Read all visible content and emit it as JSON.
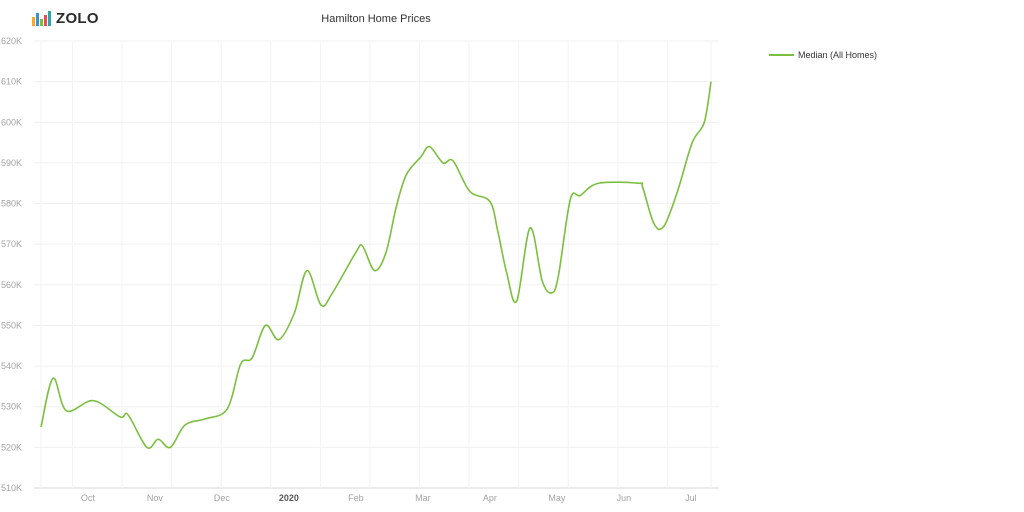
{
  "brand": {
    "name": "ZOLO",
    "colors": [
      "#f4a92c",
      "#3a8fd8",
      "#7ac143",
      "#e94f4f",
      "#2ea4a8"
    ]
  },
  "chart_data": {
    "type": "line",
    "title": "Hamilton Home Prices",
    "xlabel": "",
    "ylabel": "",
    "x_ticks": [
      {
        "label": "Oct",
        "pos": 0.7,
        "bold": false
      },
      {
        "label": "Nov",
        "pos": 1.7,
        "bold": false
      },
      {
        "label": "Dec",
        "pos": 2.7,
        "bold": false
      },
      {
        "label": "2020",
        "pos": 3.7,
        "bold": true
      },
      {
        "label": "Feb",
        "pos": 4.7,
        "bold": false
      },
      {
        "label": "Mar",
        "pos": 5.7,
        "bold": false
      },
      {
        "label": "Apr",
        "pos": 6.7,
        "bold": false
      },
      {
        "label": "May",
        "pos": 7.7,
        "bold": false
      },
      {
        "label": "Jun",
        "pos": 8.7,
        "bold": false
      },
      {
        "label": "Jul",
        "pos": 9.7,
        "bold": false
      }
    ],
    "xlim": [
      0,
      10
    ],
    "grid_x": [
      0.0,
      0.47,
      1.21,
      1.95,
      2.69,
      3.43,
      4.17,
      4.91,
      5.65,
      6.39,
      7.13,
      7.87,
      8.61,
      9.35,
      10.0
    ],
    "ylim": [
      510000,
      620000
    ],
    "y_ticks": [
      {
        "value": 510000,
        "label": "510K"
      },
      {
        "value": 520000,
        "label": "520K"
      },
      {
        "value": 530000,
        "label": "530K"
      },
      {
        "value": 540000,
        "label": "540K"
      },
      {
        "value": 550000,
        "label": "550K"
      },
      {
        "value": 560000,
        "label": "560K"
      },
      {
        "value": 570000,
        "label": "570K"
      },
      {
        "value": 580000,
        "label": "580K"
      },
      {
        "value": 590000,
        "label": "590K"
      },
      {
        "value": 600000,
        "label": "600K"
      },
      {
        "value": 610000,
        "label": "610K"
      },
      {
        "value": 620000,
        "label": "620K"
      }
    ],
    "grid": true,
    "legend_position": "top-right",
    "series": [
      {
        "name": "Median (All Homes)",
        "color": "#7cbf3f",
        "points": [
          [
            0.0,
            525000
          ],
          [
            0.18,
            537000
          ],
          [
            0.38,
            529000
          ],
          [
            0.78,
            531500
          ],
          [
            1.18,
            527500
          ],
          [
            1.3,
            528000
          ],
          [
            1.58,
            520000
          ],
          [
            1.75,
            522000
          ],
          [
            1.93,
            520000
          ],
          [
            2.15,
            525500
          ],
          [
            2.45,
            527000
          ],
          [
            2.78,
            529500
          ],
          [
            2.98,
            540500
          ],
          [
            3.15,
            542000
          ],
          [
            3.35,
            550000
          ],
          [
            3.55,
            546500
          ],
          [
            3.78,
            553000
          ],
          [
            3.97,
            563500
          ],
          [
            4.18,
            555000
          ],
          [
            4.35,
            558000
          ],
          [
            4.7,
            568000
          ],
          [
            4.8,
            569500
          ],
          [
            4.98,
            563500
          ],
          [
            5.15,
            568000
          ],
          [
            5.3,
            579000
          ],
          [
            5.45,
            587000
          ],
          [
            5.67,
            591500
          ],
          [
            5.8,
            594000
          ],
          [
            6.0,
            590000
          ],
          [
            6.15,
            590500
          ],
          [
            6.4,
            583000
          ],
          [
            6.7,
            580500
          ],
          [
            6.82,
            573000
          ],
          [
            6.95,
            563000
          ],
          [
            7.1,
            556000
          ],
          [
            7.3,
            574000
          ],
          [
            7.48,
            561000
          ],
          [
            7.62,
            558000
          ],
          [
            7.72,
            562000
          ],
          [
            7.9,
            581000
          ],
          [
            8.05,
            582000
          ],
          [
            8.32,
            585000
          ],
          [
            8.92,
            585000
          ],
          [
            8.98,
            584000
          ],
          [
            9.15,
            575000
          ],
          [
            9.3,
            574500
          ],
          [
            9.5,
            583000
          ],
          [
            9.72,
            595000
          ],
          [
            9.9,
            600000
          ],
          [
            10.0,
            610000
          ]
        ]
      }
    ]
  }
}
